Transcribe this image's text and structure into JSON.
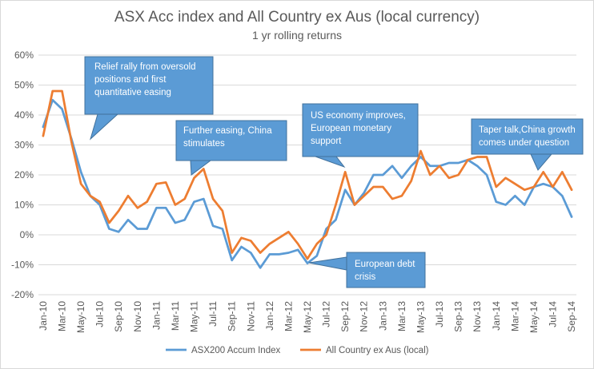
{
  "chart_data": {
    "type": "line",
    "title": "ASX Acc index and All Country ex Aus (local currency)",
    "subtitle": "1 yr rolling returns",
    "ylim": [
      -0.2,
      0.6
    ],
    "yticks": [
      {
        "value": 0.6,
        "label": "60%"
      },
      {
        "value": 0.5,
        "label": "50%"
      },
      {
        "value": 0.4,
        "label": "40%"
      },
      {
        "value": 0.3,
        "label": "30%"
      },
      {
        "value": 0.2,
        "label": "20%"
      },
      {
        "value": 0.1,
        "label": "10%"
      },
      {
        "value": 0.0,
        "label": "0%"
      },
      {
        "value": -0.1,
        "label": "-10%"
      },
      {
        "value": -0.2,
        "label": "-20%"
      }
    ],
    "x": [
      "Jan-10",
      "Feb-10",
      "Mar-10",
      "Apr-10",
      "May-10",
      "Jun-10",
      "Jul-10",
      "Aug-10",
      "Sep-10",
      "Oct-10",
      "Nov-10",
      "Dec-10",
      "Jan-11",
      "Feb-11",
      "Mar-11",
      "Apr-11",
      "May-11",
      "Jun-11",
      "Jul-11",
      "Aug-11",
      "Sep-11",
      "Oct-11",
      "Nov-11",
      "Dec-11",
      "Jan-12",
      "Feb-12",
      "Mar-12",
      "Apr-12",
      "May-12",
      "Jun-12",
      "Jul-12",
      "Aug-12",
      "Sep-12",
      "Oct-12",
      "Nov-12",
      "Dec-12",
      "Jan-13",
      "Feb-13",
      "Mar-13",
      "Apr-13",
      "May-13",
      "Jun-13",
      "Jul-13",
      "Aug-13",
      "Sep-13",
      "Oct-13",
      "Nov-13",
      "Dec-13",
      "Jan-14",
      "Feb-14",
      "Mar-14",
      "Apr-14",
      "May-14",
      "Jun-14",
      "Jul-14",
      "Aug-14",
      "Sep-14"
    ],
    "xtick_labels": [
      "Jan-10",
      "Mar-10",
      "May-10",
      "Jul-10",
      "Sep-10",
      "Nov-10",
      "Jan-11",
      "Mar-11",
      "May-11",
      "Jul-11",
      "Sep-11",
      "Nov-11",
      "Jan-12",
      "Mar-12",
      "May-12",
      "Jul-12",
      "Sep-12",
      "Nov-12",
      "Jan-13",
      "Mar-13",
      "May-13",
      "Jul-13",
      "Sep-13",
      "Nov-13",
      "Jan-14",
      "Mar-14",
      "May-14",
      "Jul-14",
      "Sep-14"
    ],
    "series": [
      {
        "name": "ASX200 Accum Index",
        "color": "#5b9bd5",
        "values": [
          0.36,
          0.45,
          0.42,
          0.32,
          0.21,
          0.13,
          0.1,
          0.02,
          0.01,
          0.05,
          0.02,
          0.02,
          0.09,
          0.09,
          0.04,
          0.05,
          0.11,
          0.12,
          0.03,
          0.02,
          -0.085,
          -0.04,
          -0.06,
          -0.11,
          -0.065,
          -0.065,
          -0.06,
          -0.05,
          -0.095,
          -0.07,
          0.02,
          0.05,
          0.15,
          0.1,
          0.14,
          0.2,
          0.2,
          0.23,
          0.19,
          0.23,
          0.26,
          0.23,
          0.23,
          0.24,
          0.24,
          0.25,
          0.23,
          0.2,
          0.11,
          0.1,
          0.13,
          0.1,
          0.16,
          0.17,
          0.16,
          0.13,
          0.06
        ]
      },
      {
        "name": "All Country ex Aus (local)",
        "color": "#ed7d31",
        "values": [
          0.33,
          0.48,
          0.48,
          0.31,
          0.17,
          0.13,
          0.11,
          0.04,
          0.08,
          0.13,
          0.09,
          0.11,
          0.17,
          0.175,
          0.1,
          0.12,
          0.19,
          0.22,
          0.12,
          0.08,
          -0.06,
          -0.01,
          -0.02,
          -0.06,
          -0.03,
          -0.01,
          0.01,
          -0.03,
          -0.08,
          -0.03,
          0.0,
          0.1,
          0.21,
          0.1,
          0.13,
          0.16,
          0.16,
          0.12,
          0.13,
          0.18,
          0.28,
          0.2,
          0.23,
          0.19,
          0.2,
          0.25,
          0.26,
          0.26,
          0.16,
          0.19,
          0.17,
          0.15,
          0.16,
          0.21,
          0.16,
          0.21,
          0.15
        ]
      }
    ],
    "annotations": [
      {
        "lines": [
          "Relief rally from oversold",
          "positions and first",
          "quantitative easing"
        ]
      },
      {
        "lines": [
          "Further easing, China",
          "stimulates"
        ]
      },
      {
        "lines": [
          "US economy improves,",
          "European monetary",
          "support"
        ]
      },
      {
        "lines": [
          "Taper talk,China growth",
          "comes under question"
        ]
      },
      {
        "lines": [
          "European debt",
          "crisis"
        ]
      }
    ],
    "grid": true,
    "legend_position": "bottom"
  },
  "colors": {
    "annotation_fill": "#5b9bd5",
    "annotation_stroke": "#41719c",
    "gridline": "#d9d9d9"
  }
}
